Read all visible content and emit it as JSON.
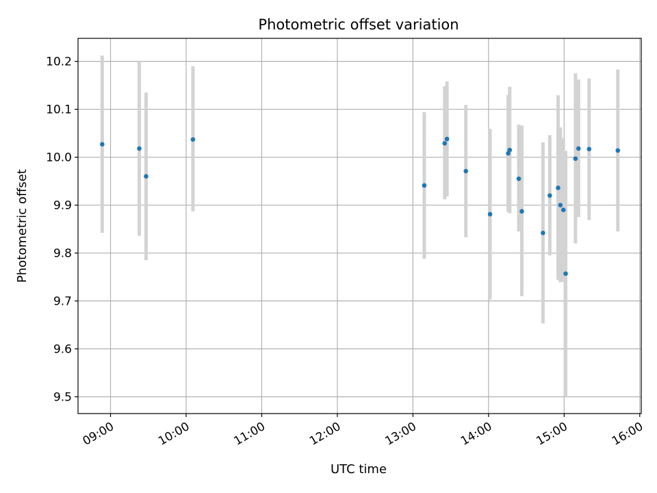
{
  "chart_data": {
    "type": "scatter",
    "title": "Photometric offset variation",
    "xlabel": "UTC time",
    "ylabel": "Photometric offset",
    "x_unit": "UTC hour of day",
    "xlim": [
      8.57,
      16.02
    ],
    "ylim": [
      9.465,
      10.248
    ],
    "xticks": [
      {
        "value": 9,
        "label": "09:00"
      },
      {
        "value": 10,
        "label": "10:00"
      },
      {
        "value": 11,
        "label": "11:00"
      },
      {
        "value": 12,
        "label": "12:00"
      },
      {
        "value": 13,
        "label": "13:00"
      },
      {
        "value": 14,
        "label": "14:00"
      },
      {
        "value": 15,
        "label": "15:00"
      },
      {
        "value": 16,
        "label": "16:00"
      }
    ],
    "yticks": [
      {
        "value": 9.5,
        "label": "9.5"
      },
      {
        "value": 9.6,
        "label": "9.6"
      },
      {
        "value": 9.7,
        "label": "9.7"
      },
      {
        "value": 9.8,
        "label": "9.8"
      },
      {
        "value": 9.9,
        "label": "9.9"
      },
      {
        "value": 10.0,
        "label": "10.0"
      },
      {
        "value": 10.1,
        "label": "10.1"
      },
      {
        "value": 10.2,
        "label": "10.2"
      }
    ],
    "grid": true,
    "marker_color": "#1f77b4",
    "errorbar_color": "#d3d3d3",
    "points": [
      {
        "x": 8.89,
        "y": 10.027,
        "err_low": 9.842,
        "err_high": 10.212
      },
      {
        "x": 9.38,
        "y": 10.018,
        "err_low": 9.836,
        "err_high": 10.2
      },
      {
        "x": 9.47,
        "y": 9.96,
        "err_low": 9.785,
        "err_high": 10.135
      },
      {
        "x": 10.09,
        "y": 10.037,
        "err_low": 9.887,
        "err_high": 10.19
      },
      {
        "x": 13.15,
        "y": 9.941,
        "err_low": 9.788,
        "err_high": 10.094
      },
      {
        "x": 13.42,
        "y": 10.029,
        "err_low": 9.912,
        "err_high": 10.148
      },
      {
        "x": 13.45,
        "y": 10.038,
        "err_low": 9.918,
        "err_high": 10.158
      },
      {
        "x": 13.7,
        "y": 9.971,
        "err_low": 9.833,
        "err_high": 10.109
      },
      {
        "x": 14.02,
        "y": 9.881,
        "err_low": 9.703,
        "err_high": 10.059
      },
      {
        "x": 14.26,
        "y": 10.008,
        "err_low": 9.886,
        "err_high": 10.13
      },
      {
        "x": 14.28,
        "y": 10.015,
        "err_low": 9.883,
        "err_high": 10.147
      },
      {
        "x": 14.4,
        "y": 9.955,
        "err_low": 9.845,
        "err_high": 10.068
      },
      {
        "x": 14.44,
        "y": 9.887,
        "err_low": 9.71,
        "err_high": 10.066
      },
      {
        "x": 14.72,
        "y": 9.842,
        "err_low": 9.653,
        "err_high": 10.031
      },
      {
        "x": 14.81,
        "y": 9.92,
        "err_low": 9.795,
        "err_high": 10.046
      },
      {
        "x": 14.92,
        "y": 9.936,
        "err_low": 9.744,
        "err_high": 10.129
      },
      {
        "x": 14.95,
        "y": 9.9,
        "err_low": 9.739,
        "err_high": 10.062
      },
      {
        "x": 14.99,
        "y": 9.89,
        "err_low": 9.74,
        "err_high": 10.04
      },
      {
        "x": 15.02,
        "y": 9.757,
        "err_low": 9.5,
        "err_high": 10.013
      },
      {
        "x": 15.15,
        "y": 9.997,
        "err_low": 9.82,
        "err_high": 10.175
      },
      {
        "x": 15.19,
        "y": 10.018,
        "err_low": 9.875,
        "err_high": 10.162
      },
      {
        "x": 15.33,
        "y": 10.017,
        "err_low": 9.869,
        "err_high": 10.164
      },
      {
        "x": 15.71,
        "y": 10.014,
        "err_low": 9.845,
        "err_high": 10.183
      }
    ]
  }
}
